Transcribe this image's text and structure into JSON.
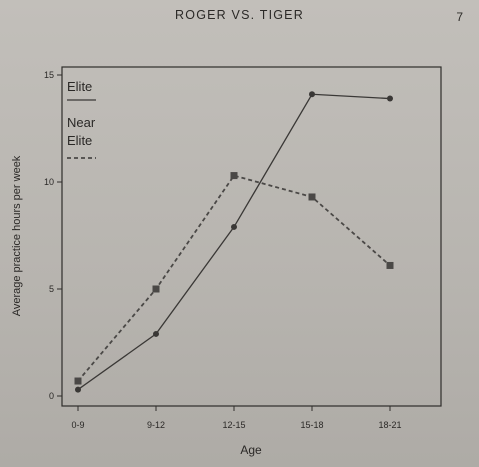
{
  "page": {
    "running_head": "ROGER VS. TIGER",
    "page_number": "7"
  },
  "chart_data": {
    "type": "line",
    "categories": [
      "0-9",
      "9-12",
      "12-15",
      "15-18",
      "18-21"
    ],
    "series": [
      {
        "name": "Elite",
        "style": "solid",
        "marker": "circle",
        "color": "#3a3836",
        "values": [
          0.3,
          2.9,
          7.9,
          14.1,
          13.9
        ]
      },
      {
        "name": "Near Elite",
        "style": "dashed",
        "marker": "square",
        "color": "#4a4846",
        "values": [
          0.7,
          5.0,
          10.3,
          9.3,
          6.1
        ]
      }
    ],
    "xlabel": "Age",
    "ylabel": "Average practice hours per week",
    "ylim": [
      0,
      15
    ],
    "yticks": [
      0,
      5,
      10,
      15
    ],
    "legend": {
      "placement": "top-left",
      "entries": [
        "Elite",
        "Near Elite"
      ]
    },
    "grid": false
  }
}
